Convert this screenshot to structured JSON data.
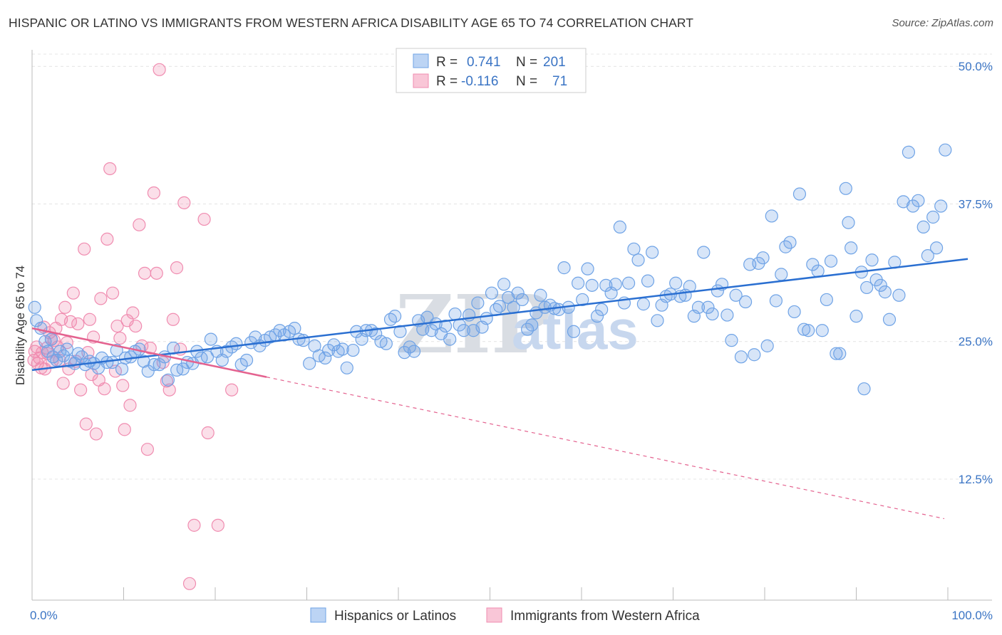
{
  "title": "HISPANIC OR LATINO VS IMMIGRANTS FROM WESTERN AFRICA DISABILITY AGE 65 TO 74 CORRELATION CHART",
  "source": "Source: ZipAtlas.com",
  "watermark": {
    "part1": "ZIP",
    "part2": "atlas"
  },
  "colors": {
    "blue": "#6fa3e6",
    "blue_line": "#2a6fd1",
    "pink": "#f08cb0",
    "pink_line": "#e4628f",
    "axis_text": "#3a74c4",
    "grid": "#e4e4e4"
  },
  "legend": {
    "rows": [
      {
        "r_label": "R =",
        "r_value": "0.741",
        "n_label": "N =",
        "n_value": "201"
      },
      {
        "r_label": "R =",
        "r_value": "-0.116",
        "n_label": "N =",
        "n_value": "71"
      }
    ]
  },
  "bottom_legend": {
    "series1": "Hispanics or Latinos",
    "series2": "Immigrants from Western Africa"
  },
  "chart_data": {
    "type": "scatter",
    "xlabel": "",
    "ylabel": "Disability Age 65 to 74",
    "xlim": [
      0,
      100
    ],
    "ylim": [
      1.5,
      51.5
    ],
    "x_tick_labels": [
      "0.0%",
      "100.0%"
    ],
    "y_ticks": [
      12.5,
      25.0,
      37.5,
      50.0
    ],
    "y_tick_labels": [
      "12.5%",
      "25.0%",
      "37.5%",
      "50.0%"
    ],
    "legend_position": "top-center",
    "series": [
      {
        "name": "Hispanics or Latinos",
        "color": "#6fa3e6",
        "trend": {
          "x0": 0,
          "y0": 22.4,
          "x1": 100,
          "y1": 32.5,
          "dashed_from": null
        },
        "points": [
          [
            0.3,
            28.1
          ],
          [
            0.5,
            26.9
          ],
          [
            1.0,
            26.2
          ],
          [
            1.5,
            25.0
          ],
          [
            1.8,
            24.1
          ],
          [
            2.2,
            25.2
          ],
          [
            2.4,
            23.6
          ],
          [
            2.8,
            23.3
          ],
          [
            3.2,
            24.1
          ],
          [
            3.6,
            23.7
          ],
          [
            4.0,
            24.3
          ],
          [
            4.4,
            23.2
          ],
          [
            4.9,
            23.0
          ],
          [
            5.3,
            23.9
          ],
          [
            5.7,
            23.6
          ],
          [
            6.1,
            22.9
          ],
          [
            6.6,
            23.2
          ],
          [
            7.1,
            23.0
          ],
          [
            7.6,
            22.6
          ],
          [
            8.0,
            23.5
          ],
          [
            8.6,
            23.1
          ],
          [
            9.2,
            23.1
          ],
          [
            9.7,
            24.2
          ],
          [
            10.3,
            22.5
          ],
          [
            10.7,
            23.5
          ],
          [
            11.3,
            23.6
          ],
          [
            11.8,
            24.1
          ],
          [
            12.3,
            24.3
          ],
          [
            12.8,
            23.2
          ],
          [
            13.3,
            22.3
          ],
          [
            14.0,
            22.9
          ],
          [
            14.6,
            22.9
          ],
          [
            15.2,
            23.6
          ],
          [
            15.6,
            21.5
          ],
          [
            16.2,
            24.4
          ],
          [
            16.6,
            22.4
          ],
          [
            17.3,
            22.5
          ],
          [
            17.8,
            23.1
          ],
          [
            18.4,
            23.0
          ],
          [
            18.9,
            24.1
          ],
          [
            19.4,
            23.5
          ],
          [
            20.1,
            23.6
          ],
          [
            20.5,
            25.2
          ],
          [
            21.2,
            24.1
          ],
          [
            21.8,
            23.3
          ],
          [
            22.3,
            24.1
          ],
          [
            22.9,
            24.5
          ],
          [
            23.4,
            24.8
          ],
          [
            24.0,
            22.9
          ],
          [
            24.6,
            23.3
          ],
          [
            25.1,
            24.9
          ],
          [
            25.6,
            25.4
          ],
          [
            26.1,
            24.6
          ],
          [
            26.7,
            25.1
          ],
          [
            27.3,
            25.4
          ],
          [
            27.9,
            25.6
          ],
          [
            28.4,
            26.0
          ],
          [
            28.9,
            25.6
          ],
          [
            29.5,
            25.9
          ],
          [
            30.1,
            26.2
          ],
          [
            30.6,
            25.2
          ],
          [
            31.1,
            25.1
          ],
          [
            31.8,
            23.0
          ],
          [
            32.4,
            24.6
          ],
          [
            32.9,
            23.7
          ],
          [
            33.6,
            23.5
          ],
          [
            34.0,
            24.2
          ],
          [
            34.6,
            24.7
          ],
          [
            35.1,
            24.1
          ],
          [
            35.6,
            24.3
          ],
          [
            36.1,
            22.6
          ],
          [
            36.8,
            24.2
          ],
          [
            37.2,
            25.9
          ],
          [
            37.8,
            25.2
          ],
          [
            38.3,
            26.0
          ],
          [
            38.9,
            26.0
          ],
          [
            39.4,
            25.7
          ],
          [
            40.0,
            25.0
          ],
          [
            40.6,
            24.8
          ],
          [
            41.1,
            27.0
          ],
          [
            41.6,
            27.3
          ],
          [
            42.2,
            25.9
          ],
          [
            42.7,
            24.0
          ],
          [
            43.3,
            24.5
          ],
          [
            43.8,
            24.1
          ],
          [
            44.3,
            26.9
          ],
          [
            44.8,
            26.1
          ],
          [
            45.3,
            27.2
          ],
          [
            45.8,
            26.0
          ],
          [
            46.3,
            26.6
          ],
          [
            46.9,
            25.7
          ],
          [
            47.4,
            26.4
          ],
          [
            47.9,
            25.2
          ],
          [
            48.5,
            27.5
          ],
          [
            49.0,
            26.5
          ],
          [
            49.5,
            26.0
          ],
          [
            50.1,
            27.4
          ],
          [
            50.6,
            26.0
          ],
          [
            51.1,
            28.5
          ],
          [
            51.6,
            26.3
          ],
          [
            52.1,
            27.1
          ],
          [
            52.7,
            29.4
          ],
          [
            53.2,
            27.9
          ],
          [
            53.6,
            28.2
          ],
          [
            54.1,
            30.2
          ],
          [
            54.6,
            29.0
          ],
          [
            55.2,
            28.1
          ],
          [
            55.7,
            29.4
          ],
          [
            56.2,
            28.8
          ],
          [
            56.8,
            26.1
          ],
          [
            57.3,
            26.5
          ],
          [
            57.8,
            27.6
          ],
          [
            58.3,
            29.2
          ],
          [
            58.8,
            28.1
          ],
          [
            59.4,
            28.3
          ],
          [
            59.9,
            28.0
          ],
          [
            60.4,
            27.9
          ],
          [
            61.0,
            31.7
          ],
          [
            61.5,
            28.1
          ],
          [
            62.1,
            25.9
          ],
          [
            62.6,
            30.3
          ],
          [
            63.1,
            28.8
          ],
          [
            63.7,
            31.6
          ],
          [
            64.2,
            30.1
          ],
          [
            64.8,
            27.3
          ],
          [
            65.3,
            27.9
          ],
          [
            65.8,
            30.1
          ],
          [
            66.4,
            29.4
          ],
          [
            66.9,
            30.2
          ],
          [
            67.4,
            35.4
          ],
          [
            67.9,
            28.5
          ],
          [
            68.4,
            30.3
          ],
          [
            69.0,
            33.4
          ],
          [
            69.5,
            32.4
          ],
          [
            70.1,
            28.4
          ],
          [
            70.6,
            30.5
          ],
          [
            71.1,
            33.1
          ],
          [
            71.7,
            26.9
          ],
          [
            72.2,
            28.3
          ],
          [
            72.7,
            29.1
          ],
          [
            73.2,
            29.3
          ],
          [
            73.8,
            30.3
          ],
          [
            74.3,
            29.1
          ],
          [
            74.9,
            29.2
          ],
          [
            75.4,
            30.0
          ],
          [
            75.9,
            27.3
          ],
          [
            76.4,
            28.1
          ],
          [
            77.0,
            33.1
          ],
          [
            77.5,
            28.1
          ],
          [
            78.0,
            27.5
          ],
          [
            78.6,
            29.6
          ],
          [
            79.1,
            30.2
          ],
          [
            79.7,
            27.4
          ],
          [
            80.2,
            25.1
          ],
          [
            80.7,
            29.2
          ],
          [
            81.3,
            23.6
          ],
          [
            81.8,
            28.6
          ],
          [
            82.3,
            32.0
          ],
          [
            82.8,
            23.8
          ],
          [
            83.3,
            32.1
          ],
          [
            83.8,
            32.6
          ],
          [
            84.3,
            24.6
          ],
          [
            84.8,
            36.4
          ],
          [
            85.3,
            28.7
          ],
          [
            85.9,
            31.1
          ],
          [
            86.4,
            33.6
          ],
          [
            86.9,
            34.0
          ],
          [
            87.4,
            27.7
          ],
          [
            88.0,
            38.4
          ],
          [
            88.5,
            26.1
          ],
          [
            89.0,
            26.0
          ],
          [
            89.5,
            32.0
          ],
          [
            90.1,
            31.4
          ],
          [
            90.6,
            26.0
          ],
          [
            91.1,
            28.8
          ],
          [
            91.6,
            32.3
          ],
          [
            92.2,
            23.9
          ],
          [
            92.6,
            23.9
          ],
          [
            93.3,
            38.9
          ],
          [
            93.6,
            35.8
          ],
          [
            93.9,
            33.5
          ],
          [
            94.5,
            27.3
          ],
          [
            95.1,
            31.3
          ],
          [
            95.7,
            29.9
          ],
          [
            96.3,
            32.4
          ],
          [
            96.8,
            30.6
          ],
          [
            97.3,
            30.1
          ],
          [
            97.8,
            29.5
          ],
          [
            98.3,
            27.0
          ],
          [
            98.9,
            32.2
          ],
          [
            99.4,
            29.2
          ],
          [
            95.4,
            20.7
          ],
          [
            99.9,
            37.7
          ],
          [
            100.5,
            42.2
          ],
          [
            101.0,
            37.3
          ],
          [
            101.6,
            37.8
          ],
          [
            102.2,
            35.4
          ],
          [
            102.7,
            32.8
          ],
          [
            103.3,
            36.3
          ],
          [
            103.7,
            33.5
          ],
          [
            104.2,
            37.3
          ],
          [
            104.7,
            42.4
          ]
        ]
      },
      {
        "name": "Immigrants from Western Africa",
        "color": "#f08cb0",
        "trend": {
          "x0": 0,
          "y0": 26.2,
          "x1": 100,
          "y1": 8.9,
          "solid_until": 25.6
        },
        "points": [
          [
            0.2,
            23.3
          ],
          [
            0.3,
            24.1
          ],
          [
            0.5,
            24.5
          ],
          [
            0.6,
            23.0
          ],
          [
            0.8,
            23.5
          ],
          [
            1.0,
            22.6
          ],
          [
            1.1,
            24.0
          ],
          [
            1.3,
            26.3
          ],
          [
            1.4,
            22.5
          ],
          [
            1.6,
            24.4
          ],
          [
            1.7,
            23.9
          ],
          [
            1.9,
            25.8
          ],
          [
            2.1,
            25.2
          ],
          [
            2.2,
            23.2
          ],
          [
            2.4,
            25.1
          ],
          [
            2.6,
            26.2
          ],
          [
            2.8,
            24.5
          ],
          [
            3.0,
            23.3
          ],
          [
            3.2,
            27.0
          ],
          [
            3.4,
            21.2
          ],
          [
            3.6,
            28.1
          ],
          [
            3.8,
            24.9
          ],
          [
            4.0,
            22.5
          ],
          [
            4.2,
            26.8
          ],
          [
            4.5,
            29.4
          ],
          [
            4.8,
            23.2
          ],
          [
            5.0,
            26.6
          ],
          [
            5.3,
            20.6
          ],
          [
            5.7,
            33.4
          ],
          [
            5.9,
            17.5
          ],
          [
            6.1,
            24.0
          ],
          [
            6.3,
            27.0
          ],
          [
            6.5,
            22.0
          ],
          [
            6.7,
            25.4
          ],
          [
            7.0,
            16.6
          ],
          [
            7.3,
            21.5
          ],
          [
            7.5,
            28.9
          ],
          [
            7.9,
            20.7
          ],
          [
            8.2,
            34.3
          ],
          [
            8.5,
            40.7
          ],
          [
            8.8,
            29.4
          ],
          [
            9.1,
            22.3
          ],
          [
            9.3,
            26.4
          ],
          [
            9.6,
            25.3
          ],
          [
            9.9,
            21.0
          ],
          [
            10.1,
            17.0
          ],
          [
            10.4,
            26.9
          ],
          [
            10.7,
            19.2
          ],
          [
            11.0,
            27.6
          ],
          [
            11.3,
            26.4
          ],
          [
            11.7,
            35.6
          ],
          [
            12.0,
            24.6
          ],
          [
            12.3,
            31.2
          ],
          [
            12.6,
            15.2
          ],
          [
            12.9,
            24.4
          ],
          [
            13.3,
            38.5
          ],
          [
            13.6,
            31.2
          ],
          [
            13.9,
            49.7
          ],
          [
            14.3,
            23.1
          ],
          [
            14.7,
            21.4
          ],
          [
            15.0,
            20.6
          ],
          [
            15.4,
            27.0
          ],
          [
            15.8,
            31.7
          ],
          [
            16.2,
            24.3
          ],
          [
            16.6,
            37.6
          ],
          [
            17.2,
            3.0
          ],
          [
            17.7,
            8.3
          ],
          [
            18.8,
            36.1
          ],
          [
            19.2,
            16.7
          ],
          [
            20.3,
            8.3
          ],
          [
            21.8,
            20.6
          ]
        ]
      }
    ]
  }
}
